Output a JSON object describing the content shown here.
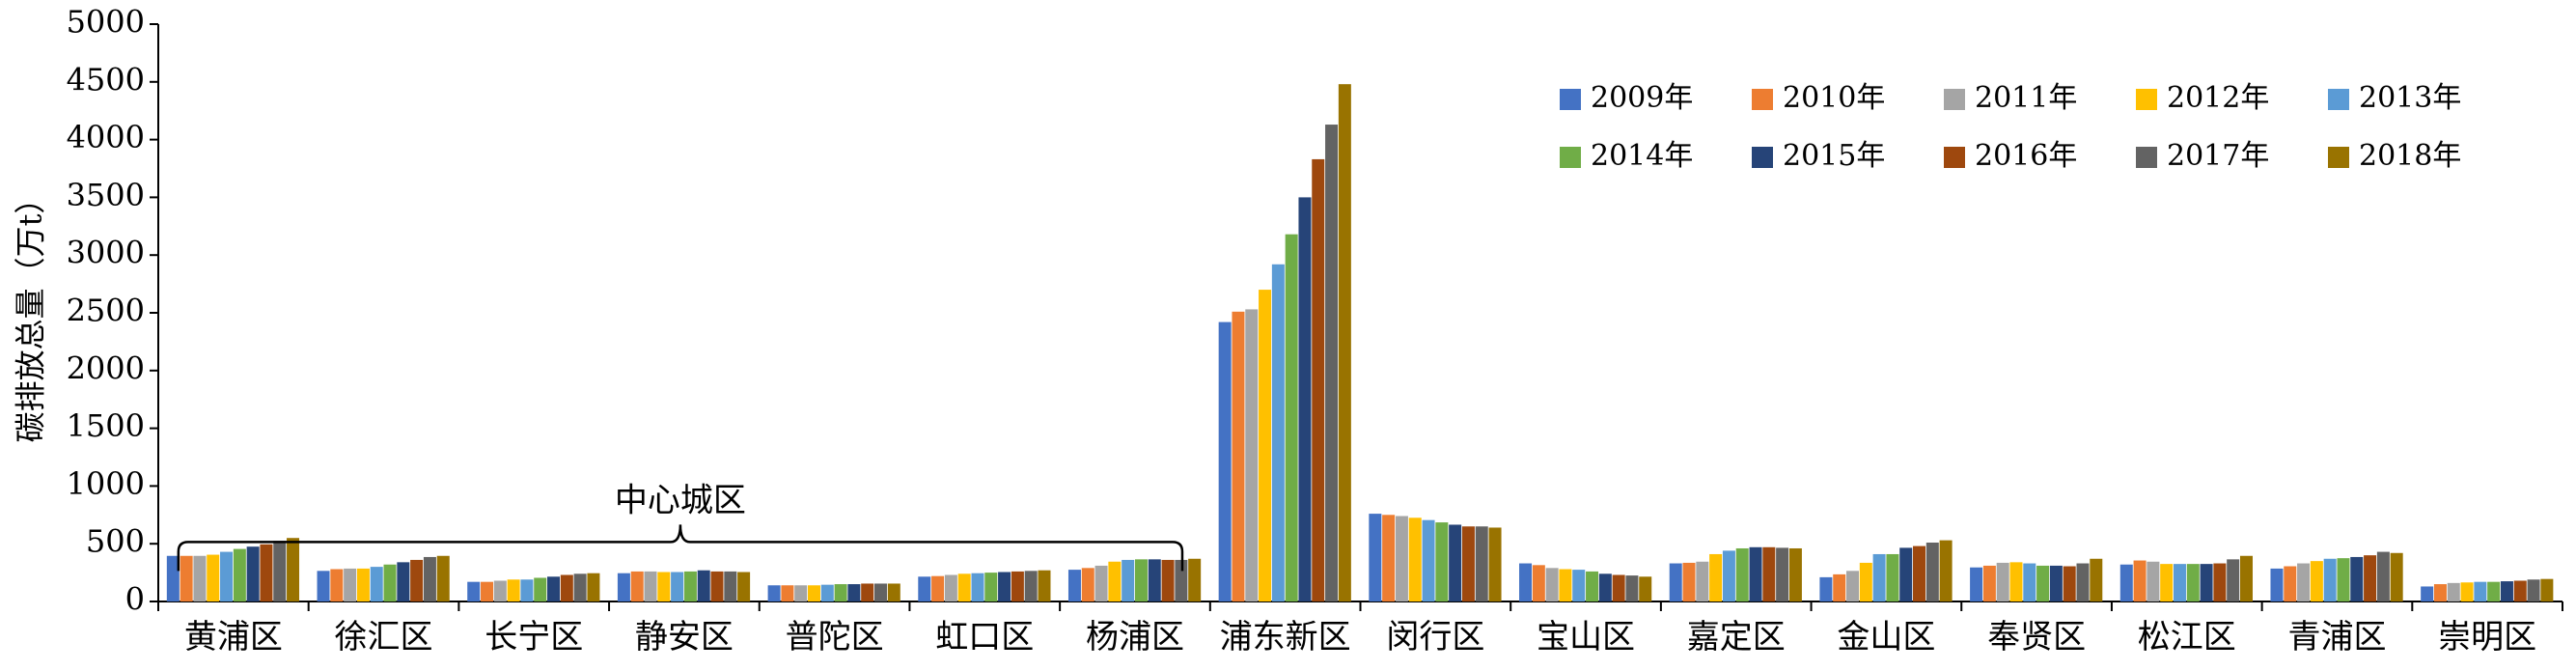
{
  "chart_data": {
    "type": "bar",
    "title": "",
    "xlabel": "",
    "ylabel": "碳排放总量（万t）",
    "ylim": [
      0,
      5000
    ],
    "yticks": [
      0,
      500,
      1000,
      1500,
      2000,
      2500,
      3000,
      3500,
      4000,
      4500,
      5000
    ],
    "grid": false,
    "legend_position": "top-right",
    "categories": [
      "黄浦区",
      "徐汇区",
      "长宁区",
      "静安区",
      "普陀区",
      "虹口区",
      "杨浦区",
      "浦东新区",
      "闵行区",
      "宝山区",
      "嘉定区",
      "金山区",
      "奉贤区",
      "松江区",
      "青浦区",
      "崇明区"
    ],
    "series": [
      {
        "name": "2009年",
        "color": "#4472C4",
        "values": [
          395,
          265,
          170,
          245,
          140,
          215,
          275,
          2420,
          760,
          330,
          330,
          210,
          295,
          320,
          285,
          130
        ]
      },
      {
        "name": "2010年",
        "color": "#ED7D31",
        "values": [
          395,
          280,
          170,
          260,
          140,
          220,
          290,
          2510,
          750,
          315,
          335,
          235,
          310,
          355,
          305,
          150
        ]
      },
      {
        "name": "2011年",
        "color": "#A5A5A5",
        "values": [
          395,
          285,
          180,
          260,
          140,
          230,
          310,
          2530,
          740,
          290,
          345,
          265,
          335,
          345,
          330,
          160
        ]
      },
      {
        "name": "2012年",
        "color": "#FFC000",
        "values": [
          405,
          285,
          190,
          255,
          140,
          240,
          345,
          2700,
          725,
          280,
          410,
          335,
          340,
          325,
          350,
          165
        ]
      },
      {
        "name": "2013年",
        "color": "#5B9BD5",
        "values": [
          430,
          300,
          190,
          255,
          145,
          245,
          360,
          2920,
          705,
          275,
          440,
          410,
          330,
          325,
          370,
          170
        ]
      },
      {
        "name": "2014年",
        "color": "#70AD47",
        "values": [
          455,
          320,
          205,
          260,
          150,
          250,
          365,
          3180,
          685,
          260,
          460,
          410,
          310,
          325,
          375,
          170
        ]
      },
      {
        "name": "2015年",
        "color": "#264478",
        "values": [
          475,
          340,
          215,
          270,
          150,
          255,
          365,
          3500,
          665,
          240,
          470,
          465,
          310,
          325,
          385,
          175
        ]
      },
      {
        "name": "2016年",
        "color": "#9E480E",
        "values": [
          495,
          360,
          230,
          260,
          155,
          260,
          360,
          3830,
          650,
          230,
          470,
          480,
          305,
          330,
          400,
          180
        ]
      },
      {
        "name": "2017年",
        "color": "#636363",
        "values": [
          525,
          385,
          240,
          260,
          155,
          265,
          360,
          4130,
          650,
          225,
          465,
          510,
          330,
          365,
          430,
          190
        ]
      },
      {
        "name": "2018年",
        "color": "#997300",
        "values": [
          550,
          395,
          245,
          255,
          155,
          270,
          370,
          4480,
          640,
          215,
          460,
          530,
          370,
          395,
          420,
          195
        ]
      }
    ],
    "annotations": [
      {
        "text": "中心城区",
        "from_category": "黄浦区",
        "to_category": "杨浦区",
        "y": 800
      }
    ]
  }
}
